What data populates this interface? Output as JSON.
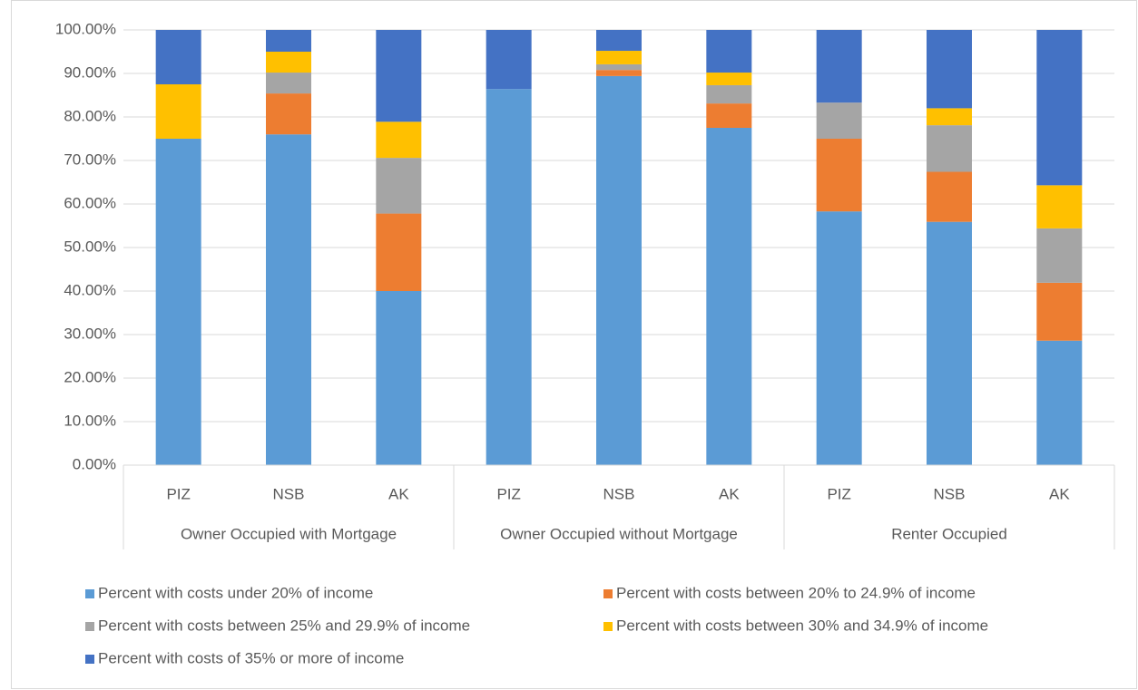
{
  "chart_data": {
    "type": "stacked_bar",
    "groups": [
      {
        "name": "Owner Occupied with Mortgage",
        "categories": [
          "PIZ",
          "NSB",
          "AK"
        ]
      },
      {
        "name": "Owner Occupied without Mortgage",
        "categories": [
          "PIZ",
          "NSB",
          "AK"
        ]
      },
      {
        "name": "Renter Occupied",
        "categories": [
          "PIZ",
          "NSB",
          "AK"
        ]
      }
    ],
    "series": [
      {
        "name": "Percent with costs under 20% of income",
        "color": "#5b9bd5",
        "values": [
          75,
          76,
          40,
          86.4,
          89.4,
          77.5,
          58.3,
          55.9,
          28.6
        ]
      },
      {
        "name": "Percent with costs between 20% to 24.9% of income",
        "color": "#ed7d31",
        "values": [
          0,
          9.4,
          17.8,
          0,
          1.4,
          5.6,
          16.7,
          11.5,
          13.3
        ]
      },
      {
        "name": "Percent with costs between 25% and 29.9% of income",
        "color": "#a5a5a5",
        "values": [
          0,
          4.8,
          12.8,
          0,
          1.3,
          4.2,
          8.3,
          10.7,
          12.5
        ]
      },
      {
        "name": "Percent with costs between 30% and 34.9% of income",
        "color": "#ffc000",
        "values": [
          12.5,
          4.8,
          8.3,
          0,
          3.1,
          2.9,
          0,
          3.9,
          9.9
        ]
      },
      {
        "name": "Percent with costs of 35% or more of income",
        "color": "#4472c4",
        "values": [
          12.5,
          5,
          21.1,
          13.6,
          4.8,
          9.8,
          16.7,
          18,
          35.7
        ]
      }
    ],
    "ylim": [
      0,
      100
    ],
    "yticks": [
      {
        "value": 0,
        "label": "0.00%"
      },
      {
        "value": 10,
        "label": "10.00%"
      },
      {
        "value": 20,
        "label": "20.00%"
      },
      {
        "value": 30,
        "label": "30.00%"
      },
      {
        "value": 40,
        "label": "40.00%"
      },
      {
        "value": 50,
        "label": "50.00%"
      },
      {
        "value": 60,
        "label": "60.00%"
      },
      {
        "value": 70,
        "label": "70.00%"
      },
      {
        "value": 80,
        "label": "80.00%"
      },
      {
        "value": 90,
        "label": "90.00%"
      },
      {
        "value": 100,
        "label": "100.00%"
      }
    ],
    "grid": true,
    "legend": "bottom"
  }
}
